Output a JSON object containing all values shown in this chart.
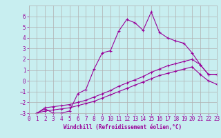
{
  "xlabel": "Windchill (Refroidissement éolien,°C)",
  "background_color": "#c8eef0",
  "grid_color": "#b0b0b0",
  "line_color": "#990099",
  "xmin": 0,
  "xmax": 23,
  "ymin": -3,
  "ymax": 7,
  "xticks": [
    0,
    1,
    2,
    3,
    4,
    5,
    6,
    7,
    8,
    9,
    10,
    11,
    12,
    13,
    14,
    15,
    16,
    17,
    18,
    19,
    20,
    21,
    22,
    23
  ],
  "yticks": [
    -3,
    -2,
    -1,
    0,
    1,
    2,
    3,
    4,
    5,
    6
  ],
  "line1_x": [
    1,
    2,
    3,
    4,
    5,
    6,
    7,
    8,
    9,
    10,
    11,
    12,
    13,
    14,
    15,
    16,
    17,
    18,
    19,
    20,
    21,
    22,
    23
  ],
  "line1_y": [
    -3,
    -2.6,
    -3,
    -3,
    -2.8,
    -1.2,
    -0.8,
    1.1,
    2.6,
    2.8,
    4.6,
    5.7,
    5.4,
    4.7,
    6.4,
    4.5,
    4.0,
    3.7,
    3.5,
    2.6,
    1.5,
    0.6,
    0.6
  ],
  "line2_x": [
    1,
    2,
    3,
    4,
    5,
    6,
    7,
    8,
    9,
    10,
    11,
    12,
    13,
    14,
    15,
    16,
    17,
    18,
    19,
    20,
    21,
    22,
    23
  ],
  "line2_y": [
    -3,
    -2.5,
    -2.4,
    -2.3,
    -2.2,
    -2.0,
    -1.8,
    -1.5,
    -1.2,
    -0.9,
    -0.5,
    -0.2,
    0.1,
    0.4,
    0.8,
    1.1,
    1.4,
    1.6,
    1.8,
    2.0,
    1.5,
    0.6,
    0.6
  ],
  "line3_x": [
    1,
    2,
    3,
    4,
    5,
    6,
    7,
    8,
    9,
    10,
    11,
    12,
    13,
    14,
    15,
    16,
    17,
    18,
    19,
    20,
    21,
    22,
    23
  ],
  "line3_y": [
    -3,
    -2.8,
    -2.7,
    -2.6,
    -2.5,
    -2.3,
    -2.1,
    -1.9,
    -1.6,
    -1.3,
    -1.0,
    -0.7,
    -0.4,
    -0.1,
    0.2,
    0.5,
    0.7,
    0.9,
    1.1,
    1.3,
    0.6,
    0.0,
    -0.3
  ],
  "tick_fontsize": 5.5,
  "xlabel_fontsize": 5.5,
  "marker_size": 2.5,
  "line_width": 0.8
}
